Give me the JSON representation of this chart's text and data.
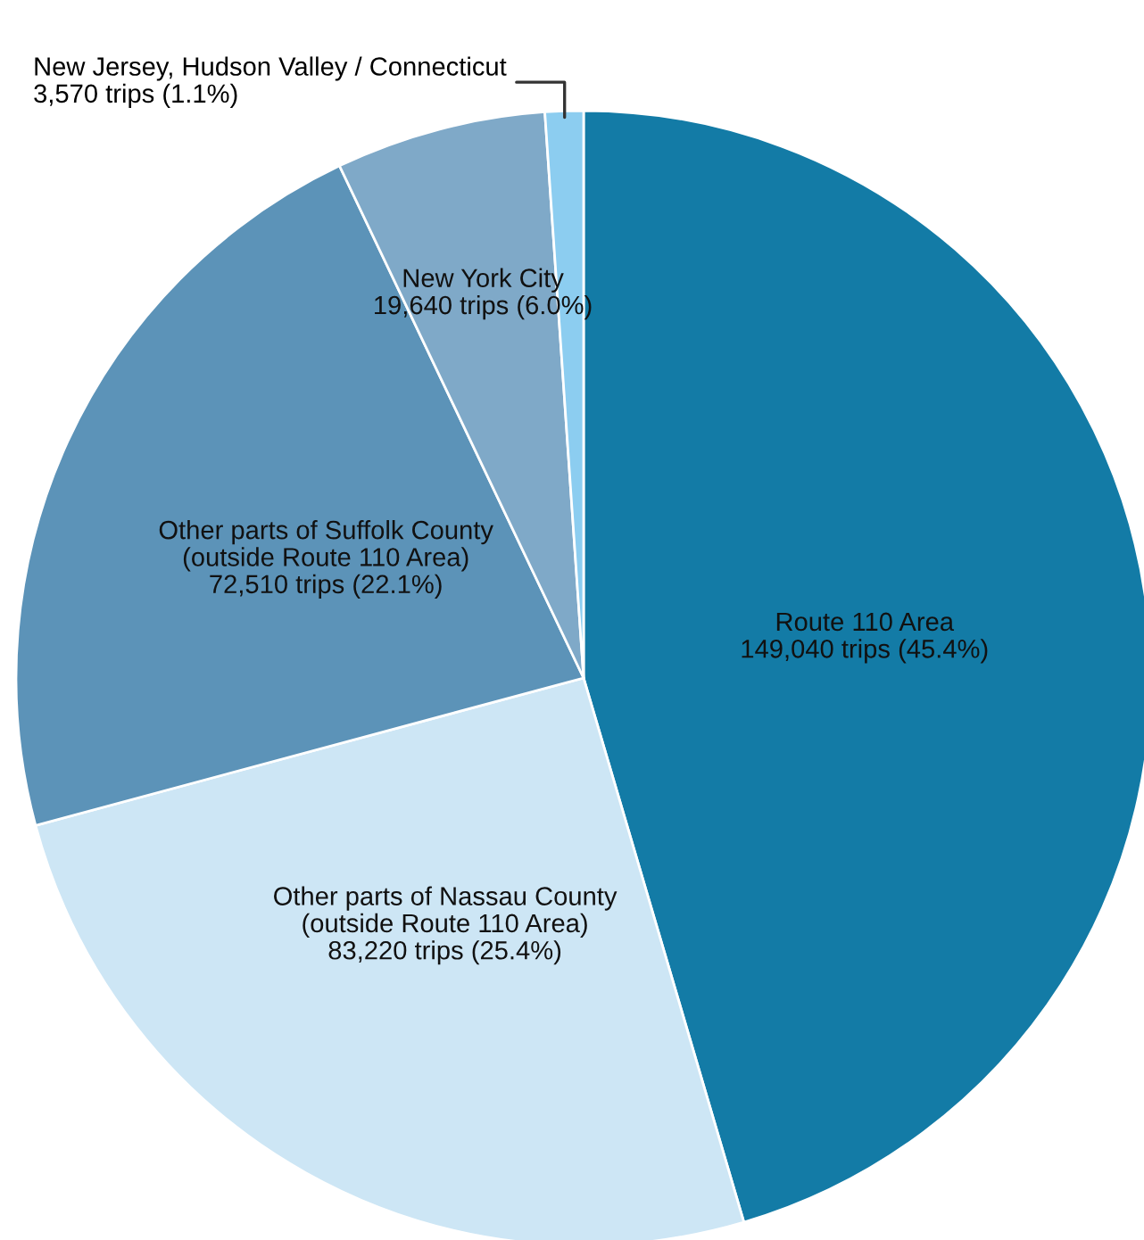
{
  "chart_data": {
    "type": "pie",
    "categories": [
      "Route 110 Area",
      "Other parts of Nassau County\n(outside Route 110 Area)",
      "Other parts of Suffolk County\n(outside Route 110 Area)",
      "New York City",
      "New Jersey, Hudson Valley / Connecticut"
    ],
    "values": [
      149040,
      83220,
      72510,
      19640,
      3570
    ],
    "value_labels": [
      "149,040 trips (45.4%)",
      "83,220 trips (25.4%)",
      "72,510 trips (22.1%)",
      "19,640 trips (6.0%)",
      "3,570 trips (1.1%)"
    ],
    "colors": [
      "#137ba6",
      "#cde6f5",
      "#5c93b8",
      "#7fa9c8",
      "#8ccdf0"
    ]
  }
}
